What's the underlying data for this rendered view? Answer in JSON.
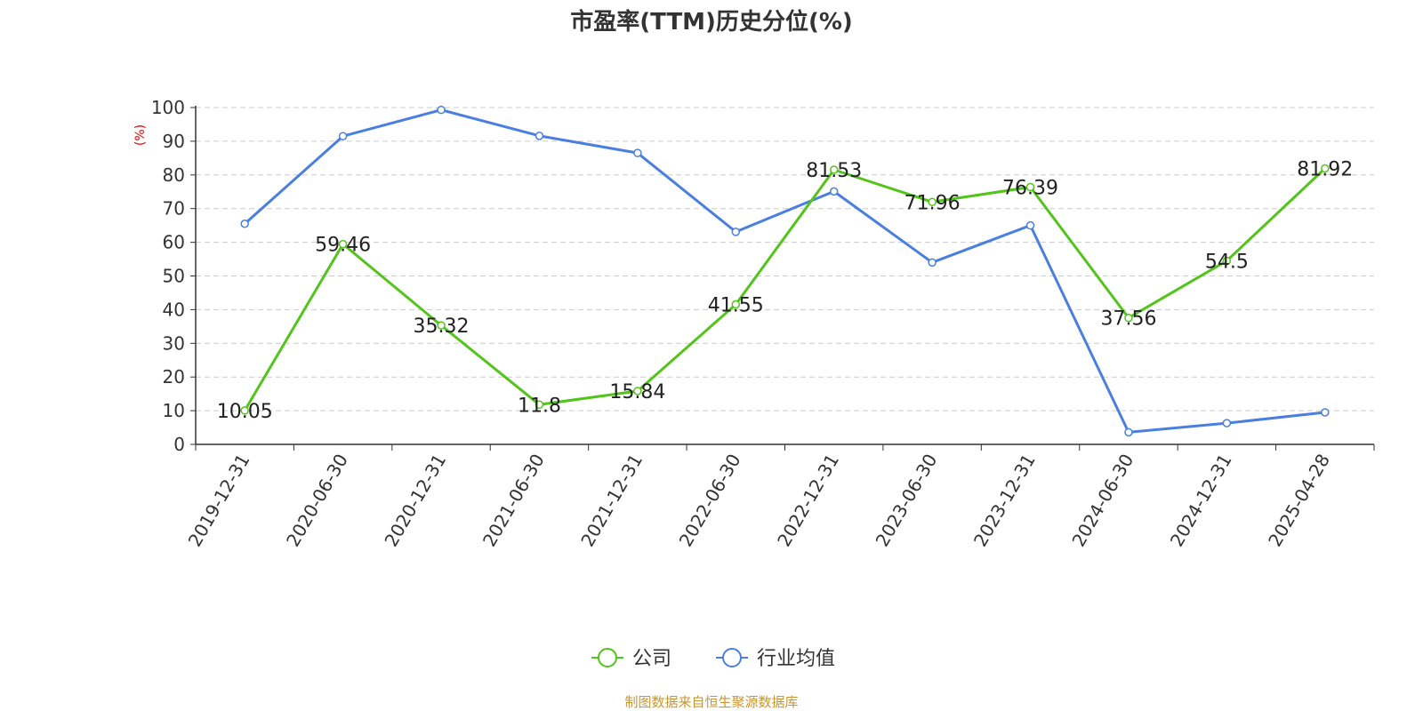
{
  "chart_data": {
    "type": "line",
    "title": "市盈率(TTM)历史分位(%)",
    "ylabel": "(%)",
    "categories": [
      "2019-12-31",
      "2020-06-30",
      "2020-12-31",
      "2021-06-30",
      "2021-12-31",
      "2022-06-30",
      "2022-12-31",
      "2023-06-30",
      "2023-12-31",
      "2024-06-30",
      "2024-12-31",
      "2025-04-28"
    ],
    "ylim": [
      0,
      100
    ],
    "yticks": [
      0,
      10,
      20,
      30,
      40,
      50,
      60,
      70,
      80,
      90,
      100
    ],
    "grid": true,
    "legend_position": "bottom-center",
    "series": [
      {
        "name": "公司",
        "color": "#52c41a",
        "labeled": true,
        "values": [
          10.05,
          59.46,
          35.32,
          11.8,
          15.84,
          41.55,
          81.53,
          71.96,
          76.39,
          37.56,
          54.5,
          81.92
        ],
        "labels": [
          "10.05",
          "59.46",
          "35.32",
          "11.8",
          "15.84",
          "41.55",
          "81.53",
          "71.96",
          "76.39",
          "37.56",
          "54.5",
          "81.92"
        ]
      },
      {
        "name": "行业均值",
        "color": "#4a7fe0",
        "labeled": false,
        "values": [
          65.5,
          91.5,
          99.3,
          91.6,
          86.5,
          63.1,
          75.1,
          54.0,
          65.0,
          3.6,
          6.3,
          9.5
        ]
      }
    ]
  },
  "source": "制图数据来自恒生聚源数据库"
}
